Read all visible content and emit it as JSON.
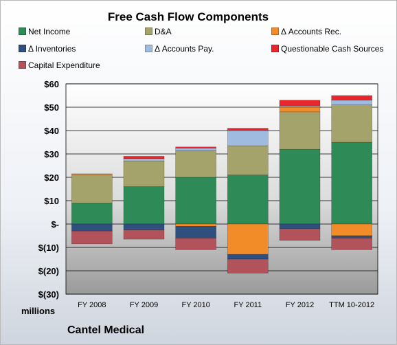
{
  "chart_data": {
    "type": "bar",
    "stacked": true,
    "title": "Free Cash Flow Components",
    "ylabel": "millions",
    "company": "Cantel Medical",
    "ylim": [
      -30,
      60
    ],
    "yticks": [
      60,
      50,
      40,
      30,
      20,
      10,
      0,
      -10,
      -20,
      -30
    ],
    "ytick_labels": [
      "$60",
      "$50",
      "$40",
      "$30",
      "$20",
      "$10",
      "$-",
      "$(10)",
      "$(20)",
      "$(30)"
    ],
    "categories": [
      "FY 2008",
      "FY 2009",
      "FY 2010",
      "FY 2011",
      "FY 2012",
      "TTM 10-2012"
    ],
    "grid": true,
    "legend_position": "top",
    "series": [
      {
        "name": "Net Income",
        "color": "#2e8b57",
        "values": [
          9,
          16,
          20,
          21,
          32,
          35
        ]
      },
      {
        "name": "D&A",
        "color": "#a3a36b",
        "values": [
          12,
          11,
          11.5,
          12.5,
          16,
          16
        ]
      },
      {
        "name": "Δ Accounts Rec.",
        "color": "#f28c28",
        "values": [
          0.5,
          0,
          -1,
          -13,
          2,
          -5
        ]
      },
      {
        "name": "Δ Inventories",
        "color": "#2f4f7f",
        "values": [
          -3,
          -2.5,
          -5,
          -2,
          -2,
          -1
        ]
      },
      {
        "name": "Δ Accounts Pay.",
        "color": "#9fbbe0",
        "values": [
          0,
          1,
          1,
          6.5,
          0.5,
          2
        ]
      },
      {
        "name": "Questionable Cash Sources",
        "color": "#e8262c",
        "values": [
          0,
          1,
          0.5,
          1,
          2.5,
          2
        ]
      },
      {
        "name": "Capital Expenditure",
        "color": "#b2535c",
        "values": [
          -5.5,
          -4,
          -5,
          -6,
          -5,
          -5
        ]
      }
    ]
  }
}
